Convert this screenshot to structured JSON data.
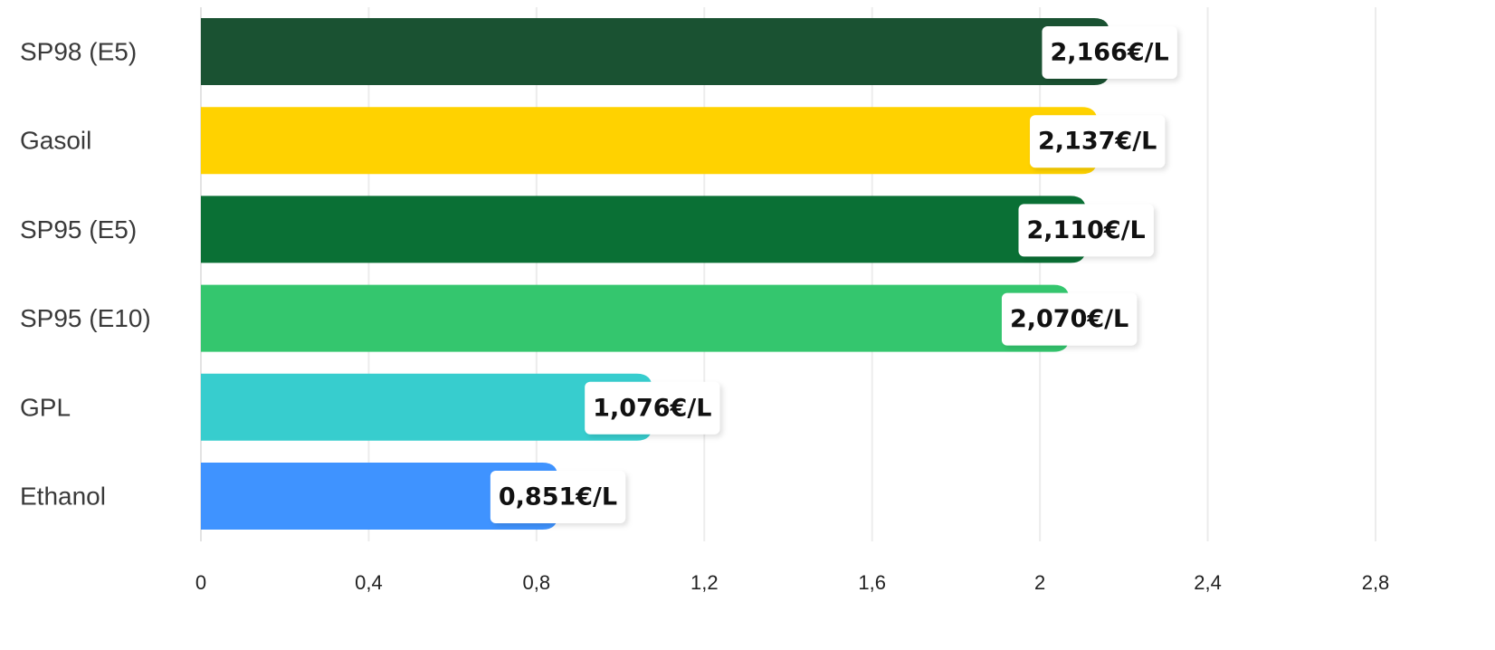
{
  "chart_data": {
    "type": "bar",
    "orientation": "horizontal",
    "categories": [
      "SP98 (E5)",
      "Gasoil",
      "SP95 (E5)",
      "SP95 (E10)",
      "GPL",
      "Ethanol"
    ],
    "values": [
      2.166,
      2.137,
      2.11,
      2.07,
      1.076,
      0.851
    ],
    "value_labels": [
      "2,166€/L",
      "2,137€/L",
      "2,110€/L",
      "2,070€/L",
      "1,076€/L",
      "0,851€/L"
    ],
    "colors": [
      "#1a5232",
      "#ffd200",
      "#0a7035",
      "#34c66e",
      "#37cdce",
      "#3f93ff"
    ],
    "xlim": [
      0,
      2.8
    ],
    "xticks": [
      0,
      0.4,
      0.8,
      1.2,
      1.6,
      2,
      2.4,
      2.8
    ],
    "xtick_labels": [
      "0",
      "0,4",
      "0,8",
      "1,2",
      "1,6",
      "2",
      "2,4",
      "2,8"
    ],
    "grid": true,
    "legend": false,
    "title": "",
    "xlabel": "",
    "ylabel": ""
  }
}
